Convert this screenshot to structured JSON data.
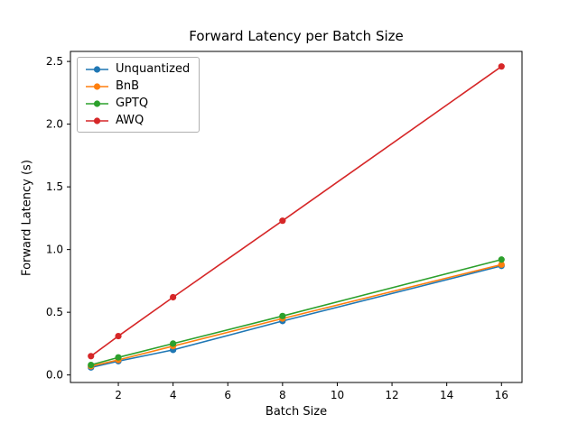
{
  "title": "Forward Latency per Batch Size",
  "chart_data": {
    "type": "line",
    "title": "Forward Latency per Batch Size",
    "xlabel": "Batch Size",
    "ylabel": "Forward Latency (s)",
    "x": [
      1,
      2,
      4,
      8,
      16
    ],
    "series": [
      {
        "name": "Unquantized",
        "color": "#1f77b4",
        "values": [
          0.06,
          0.11,
          0.2,
          0.43,
          0.87
        ]
      },
      {
        "name": "BnB",
        "color": "#ff7f0e",
        "values": [
          0.07,
          0.12,
          0.23,
          0.45,
          0.88
        ]
      },
      {
        "name": "GPTQ",
        "color": "#2ca02c",
        "values": [
          0.08,
          0.14,
          0.25,
          0.47,
          0.92
        ]
      },
      {
        "name": "AWQ",
        "color": "#d62728",
        "values": [
          0.15,
          0.31,
          0.62,
          1.23,
          2.46
        ]
      }
    ],
    "xlim": [
      0.25,
      16.75
    ],
    "ylim": [
      -0.06,
      2.58
    ],
    "xticks": [
      2,
      4,
      6,
      8,
      10,
      12,
      14,
      16
    ],
    "xtick_labels": [
      "2",
      "4",
      "6",
      "8",
      "10",
      "12",
      "14",
      "16"
    ],
    "yticks": [
      0.0,
      0.5,
      1.0,
      1.5,
      2.0,
      2.5
    ],
    "ytick_labels": [
      "0.0",
      "0.5",
      "1.0",
      "1.5",
      "2.0",
      "2.5"
    ],
    "grid": false,
    "legend_position": "upper left",
    "marker": "o",
    "axes_color": "#000000",
    "background_color": "#ffffff"
  }
}
